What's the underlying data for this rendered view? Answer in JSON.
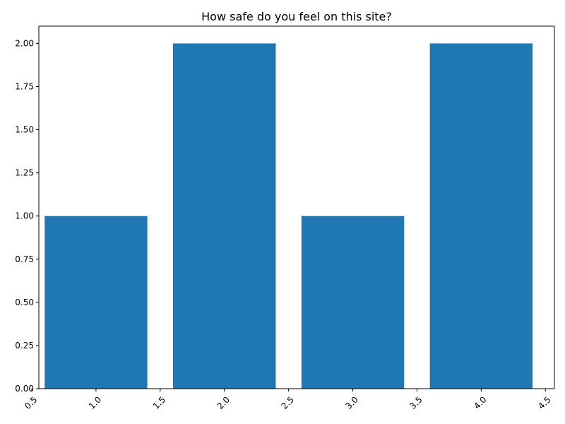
{
  "chart_data": {
    "type": "bar",
    "title": "How safe do you feel on this site?",
    "xlabel": "",
    "ylabel": "",
    "x": [
      1.0,
      2.0,
      3.0,
      4.0
    ],
    "values": [
      1,
      2,
      1,
      2
    ],
    "bar_width": 0.8,
    "xlim": [
      0.555,
      4.57
    ],
    "ylim": [
      0,
      2.1
    ],
    "xticks": [
      0.5,
      1.0,
      1.5,
      2.0,
      2.5,
      3.0,
      3.5,
      4.0,
      4.5
    ],
    "xtick_labels": [
      "0.5",
      "1.0",
      "1.5",
      "2.0",
      "2.5",
      "3.0",
      "3.5",
      "4.0",
      "4.5"
    ],
    "yticks": [
      0,
      0.25,
      0.5,
      0.75,
      1.0,
      1.25,
      1.5,
      1.75,
      2.0
    ],
    "ytick_labels": [
      "0.00",
      "0.25",
      "0.50",
      "0.75",
      "1.00",
      "1.25",
      "1.50",
      "1.75",
      "2.00"
    ],
    "grid": false,
    "legend": "none",
    "bar_color": "#1f77b4"
  }
}
